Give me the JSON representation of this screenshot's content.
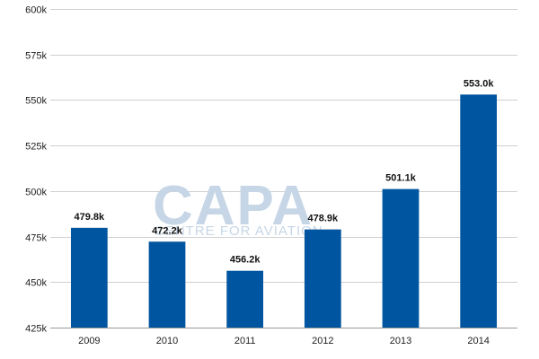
{
  "watermark": {
    "main_text": "CAPA",
    "sub_text": "CENTRE FOR AVIATION"
  },
  "chart_data": {
    "type": "bar",
    "title": "",
    "xlabel": "",
    "ylabel": "",
    "categories": [
      "2009",
      "2010",
      "2011",
      "2012",
      "2013",
      "2014"
    ],
    "values": [
      479.8,
      472.2,
      456.2,
      478.9,
      501.1,
      553.0
    ],
    "value_unit": "k",
    "data_labels": [
      "479.8k",
      "472.2k",
      "456.2k",
      "478.9k",
      "501.1k",
      "553.0k"
    ],
    "ylim": [
      425,
      600
    ],
    "yticks": [
      425,
      450,
      475,
      500,
      525,
      550,
      575,
      600
    ],
    "ytick_labels": [
      "425k",
      "450k",
      "475k",
      "500k",
      "525k",
      "550k",
      "575k",
      "600k"
    ],
    "grid": true,
    "legend": "none",
    "bar_color": "#0055a0",
    "grid_color": "#d0d0d0"
  }
}
